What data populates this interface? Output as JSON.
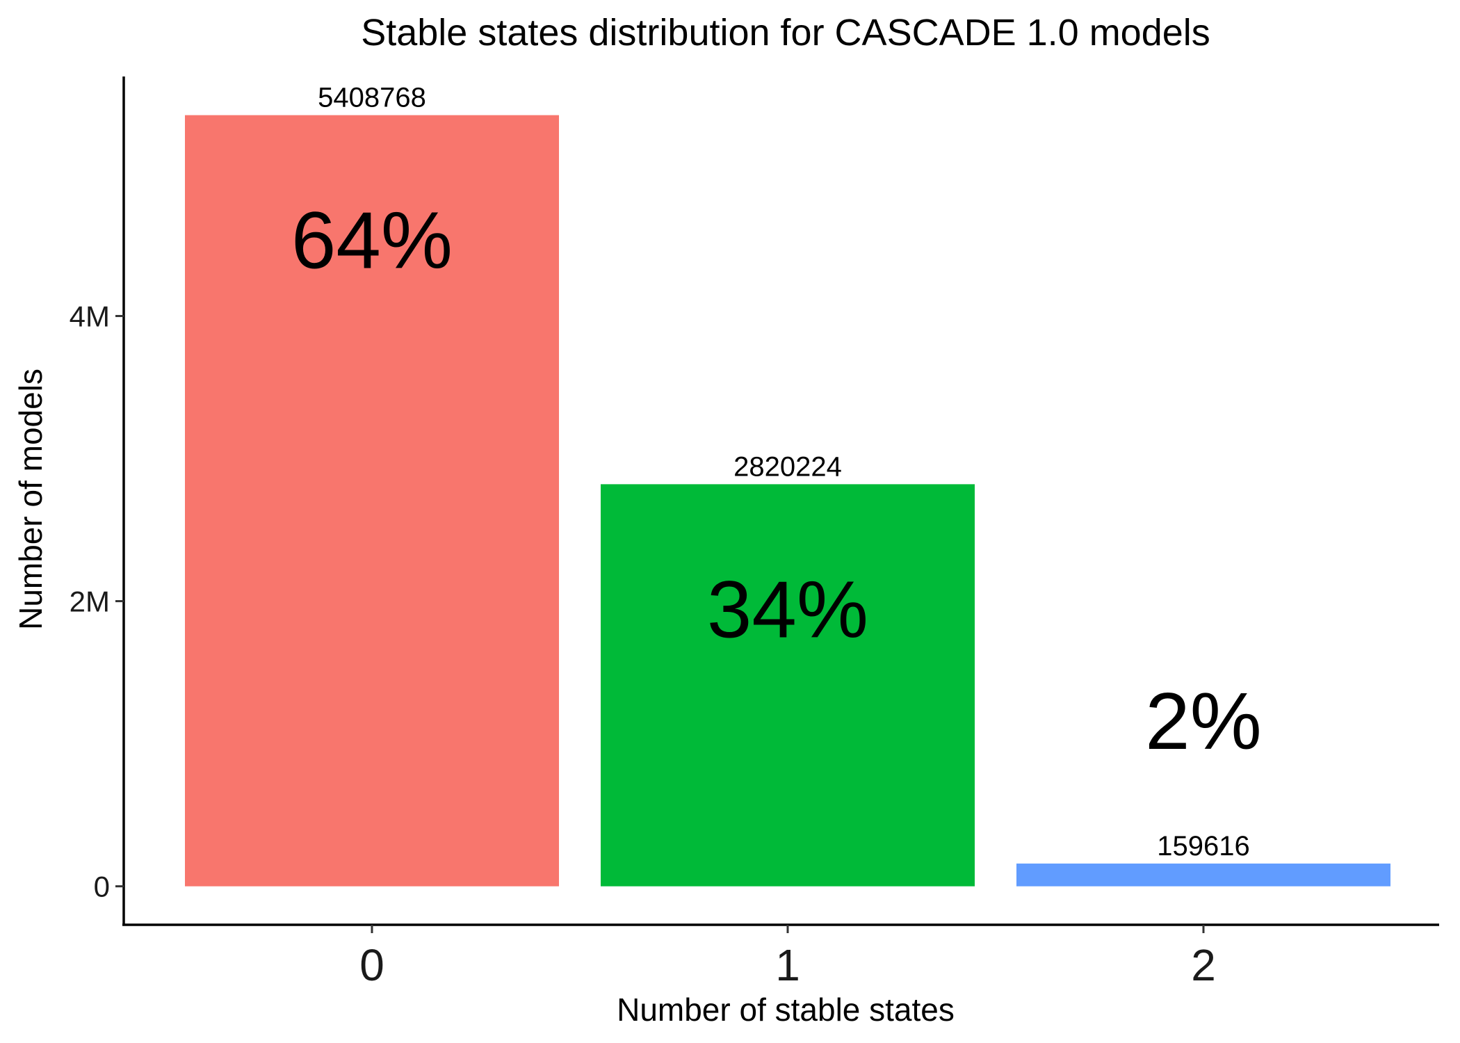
{
  "chart_data": {
    "type": "bar",
    "title": "Stable states distribution for CASCADE 1.0 models",
    "xlabel": "Number of stable states",
    "ylabel": "Number of models",
    "categories": [
      "0",
      "1",
      "2"
    ],
    "values": [
      5408768,
      2820224,
      159616
    ],
    "value_labels": [
      "5408768",
      "2820224",
      "159616"
    ],
    "percent_labels": [
      "64%",
      "34%",
      "2%"
    ],
    "colors": [
      "#F8766D",
      "#00BA38",
      "#619CFF"
    ],
    "ylim": [
      -270000,
      5680000
    ],
    "yticks": [
      {
        "value": 0,
        "label": "0"
      },
      {
        "value": 2000000,
        "label": "2M"
      },
      {
        "value": 4000000,
        "label": "4M"
      }
    ],
    "grid": false,
    "legend": "none"
  }
}
